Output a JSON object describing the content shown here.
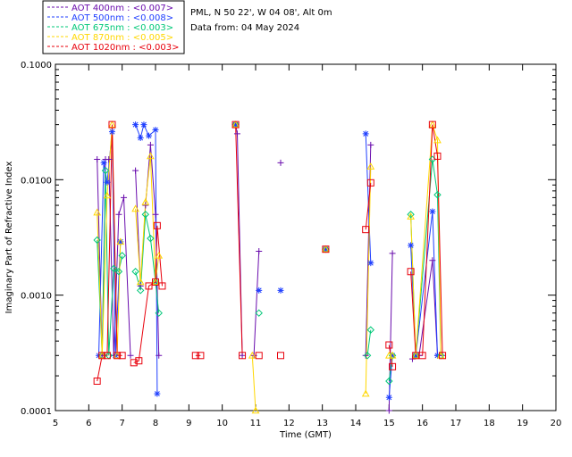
{
  "header": {
    "line1": "PML, N 50 22', W 04 08', Alt 0m",
    "line2": "Data from: 04 May 2024"
  },
  "chart_data": {
    "type": "line",
    "xlabel": "Time (GMT)",
    "ylabel": "Imaginary Part of Refractive Index",
    "xlim": [
      5,
      20
    ],
    "ylim": [
      0.0001,
      0.1
    ],
    "yscale": "log",
    "x_ticks": [
      "5",
      "6",
      "7",
      "8",
      "9",
      "10",
      "11",
      "12",
      "13",
      "14",
      "15",
      "16",
      "17",
      "18",
      "19",
      "20"
    ],
    "y_ticks": [
      {
        "value": 0.0001,
        "label": "0.0001"
      },
      {
        "value": 0.001,
        "label": "0.0010"
      },
      {
        "value": 0.01,
        "label": "0.0100"
      },
      {
        "value": 0.1,
        "label": "0.1000"
      }
    ],
    "series": [
      {
        "name": "AOT  400nm : <0.007>",
        "color": "#6a0dad",
        "marker": "plus",
        "segments": [
          [
            [
              6.25,
              0.015
            ],
            [
              6.4,
              0.0003
            ],
            [
              6.5,
              0.015
            ],
            [
              6.6,
              0.015
            ],
            [
              6.75,
              0.0003
            ],
            [
              6.9,
              0.005
            ],
            [
              7.05,
              0.007
            ],
            [
              7.25,
              0.0003
            ]
          ],
          [
            [
              7.4,
              0.012
            ],
            [
              7.55,
              0.0012
            ],
            [
              7.7,
              0.006
            ],
            [
              7.85,
              0.02
            ],
            [
              8.0,
              0.005
            ],
            [
              8.1,
              0.0003
            ]
          ],
          [
            [
              10.4,
              0.03
            ],
            [
              10.45,
              0.025
            ],
            [
              10.6,
              0.0003
            ]
          ],
          [
            [
              10.95,
              0.0003
            ],
            [
              11.1,
              0.0024
            ]
          ],
          [
            [
              11.75,
              0.014
            ]
          ],
          [
            [
              13.1,
              0.0025
            ]
          ],
          [
            [
              14.3,
              0.0003
            ],
            [
              14.45,
              0.02
            ]
          ],
          [
            [
              15.0,
              0.0001
            ],
            [
              15.1,
              0.0023
            ]
          ],
          [
            [
              15.7,
              0.00028
            ],
            [
              15.9,
              0.0003
            ],
            [
              16.3,
              0.002
            ],
            [
              16.45,
              0.0003
            ],
            [
              16.6,
              0.0003
            ]
          ]
        ]
      },
      {
        "name": "AOT  500nm : <0.008>",
        "color": "#1f3fff",
        "marker": "star",
        "segments": [
          [
            [
              6.3,
              0.0003
            ],
            [
              6.45,
              0.014
            ],
            [
              6.55,
              0.0095
            ],
            [
              6.7,
              0.026
            ],
            [
              6.8,
              0.0003
            ],
            [
              6.95,
              0.0029
            ]
          ],
          [
            [
              7.4,
              0.03
            ],
            [
              7.55,
              0.023
            ],
            [
              7.65,
              0.03
            ],
            [
              7.8,
              0.024
            ],
            [
              8.0,
              0.027
            ],
            [
              8.05,
              0.00014
            ]
          ],
          [
            [
              10.4,
              0.03
            ]
          ],
          [
            [
              11.1,
              0.0011
            ]
          ],
          [
            [
              11.75,
              0.0011
            ]
          ],
          [
            [
              13.1,
              0.0025
            ]
          ],
          [
            [
              14.3,
              0.025
            ],
            [
              14.45,
              0.0019
            ]
          ],
          [
            [
              15.0,
              0.00013
            ],
            [
              15.1,
              0.0003
            ]
          ],
          [
            [
              15.65,
              0.0027
            ],
            [
              15.8,
              0.0003
            ],
            [
              16.3,
              0.0053
            ],
            [
              16.45,
              0.0003
            ]
          ]
        ]
      },
      {
        "name": "AOT  675nm : <0.003>",
        "color": "#00c878",
        "marker": "diamond",
        "segments": [
          [
            [
              6.25,
              0.003
            ],
            [
              6.4,
              0.0003
            ],
            [
              6.5,
              0.012
            ],
            [
              6.6,
              0.0003
            ],
            [
              6.75,
              0.0017
            ],
            [
              6.9,
              0.0016
            ],
            [
              7.0,
              0.0022
            ]
          ],
          [
            [
              7.4,
              0.0016
            ],
            [
              7.55,
              0.0011
            ],
            [
              7.7,
              0.005
            ],
            [
              7.85,
              0.0031
            ],
            [
              8.0,
              0.0013
            ],
            [
              8.1,
              0.0007
            ]
          ],
          [
            [
              10.4,
              0.03
            ]
          ],
          [
            [
              11.1,
              0.0007
            ]
          ],
          [
            [
              13.1,
              0.0025
            ]
          ],
          [
            [
              14.35,
              0.0003
            ],
            [
              14.45,
              0.0005
            ]
          ],
          [
            [
              15.0,
              0.00018
            ],
            [
              15.1,
              0.0003
            ]
          ],
          [
            [
              15.65,
              0.005
            ],
            [
              15.8,
              0.0003
            ],
            [
              16.3,
              0.015
            ],
            [
              16.45,
              0.0074
            ],
            [
              16.55,
              0.0003
            ]
          ]
        ]
      },
      {
        "name": "AOT  870nm : <0.005>",
        "color": "#ffd700",
        "marker": "triangle",
        "segments": [
          [
            [
              6.25,
              0.0052
            ],
            [
              6.4,
              0.0003
            ],
            [
              6.55,
              0.0073
            ],
            [
              6.7,
              0.03
            ],
            [
              6.85,
              0.0003
            ],
            [
              6.95,
              0.0029
            ]
          ],
          [
            [
              7.4,
              0.0056
            ],
            [
              7.55,
              0.0013
            ],
            [
              7.7,
              0.0064
            ],
            [
              7.85,
              0.016
            ],
            [
              8.0,
              0.0013
            ],
            [
              8.1,
              0.0022
            ]
          ],
          [
            [
              10.4,
              0.03
            ]
          ],
          [
            [
              10.9,
              0.0003
            ],
            [
              11.0,
              0.0001
            ]
          ],
          [
            [
              13.1,
              0.0025
            ]
          ],
          [
            [
              14.3,
              0.00014
            ],
            [
              14.45,
              0.013
            ]
          ],
          [
            [
              15.0,
              0.0003
            ],
            [
              15.1,
              0.0003
            ]
          ],
          [
            [
              15.65,
              0.0048
            ],
            [
              15.8,
              0.0003
            ],
            [
              16.3,
              0.03
            ],
            [
              16.45,
              0.022
            ],
            [
              16.55,
              0.0003
            ]
          ]
        ]
      },
      {
        "name": "AOT 1020nm : <0.003>",
        "color": "#e8000b",
        "marker": "square",
        "segments": [
          [
            [
              6.25,
              0.00018
            ],
            [
              6.4,
              0.0003
            ],
            [
              6.55,
              0.0003
            ],
            [
              6.7,
              0.03
            ],
            [
              6.85,
              0.0003
            ],
            [
              7.0,
              0.0003
            ]
          ],
          [
            [
              7.35,
              0.00026
            ],
            [
              7.5,
              0.00027
            ],
            [
              7.8,
              0.0012
            ],
            [
              8.0,
              0.0013
            ],
            [
              8.05,
              0.004
            ],
            [
              8.2,
              0.0012
            ]
          ],
          [
            [
              9.2,
              0.0003
            ],
            [
              9.35,
              0.0003
            ]
          ],
          [
            [
              10.4,
              0.03
            ],
            [
              10.6,
              0.0003
            ]
          ],
          [
            [
              11.1,
              0.0003
            ]
          ],
          [
            [
              11.75,
              0.0003
            ]
          ],
          [
            [
              13.1,
              0.0025
            ]
          ],
          [
            [
              14.3,
              0.0037
            ],
            [
              14.45,
              0.0094
            ]
          ],
          [
            [
              15.0,
              0.00037
            ],
            [
              15.1,
              0.00024
            ]
          ],
          [
            [
              15.65,
              0.0016
            ],
            [
              15.8,
              0.0003
            ],
            [
              16.0,
              0.0003
            ],
            [
              16.3,
              0.03
            ],
            [
              16.45,
              0.016
            ],
            [
              16.6,
              0.0003
            ]
          ]
        ]
      }
    ]
  }
}
